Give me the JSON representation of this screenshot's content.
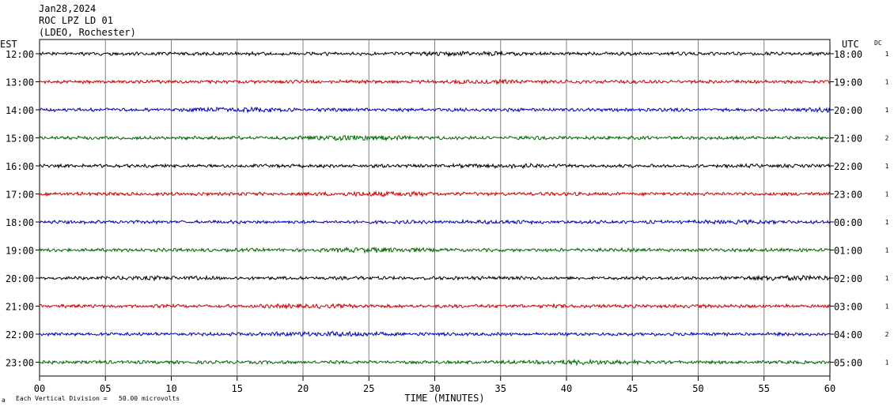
{
  "header": {
    "date": "Jan28,2024",
    "station": "ROC LPZ LD 01",
    "network": "(LDEO, Rochester)"
  },
  "left_axis_title": "EST",
  "right_axis_title": "UTC",
  "dc_title": "DC",
  "footer": {
    "scale_note": "Each Vertical Division =   50.00 microvolts",
    "corner_mark": "a"
  },
  "chart_data": {
    "type": "line",
    "title": "",
    "xlabel": "TIME (MINUTES)",
    "ylabel": "",
    "xlim": [
      0,
      60
    ],
    "x_ticks": [
      "00",
      "05",
      "10",
      "15",
      "20",
      "25",
      "30",
      "35",
      "40",
      "45",
      "50",
      "55",
      "60"
    ],
    "grid": true,
    "traces": [
      {
        "est": "12:00",
        "utc": "18:00",
        "dc": "1",
        "color": "#000000"
      },
      {
        "est": "13:00",
        "utc": "19:00",
        "dc": "1",
        "color": "#cc0000"
      },
      {
        "est": "14:00",
        "utc": "20:00",
        "dc": "1",
        "color": "#0000bb"
      },
      {
        "est": "15:00",
        "utc": "21:00",
        "dc": "2",
        "color": "#006600"
      },
      {
        "est": "16:00",
        "utc": "22:00",
        "dc": "1",
        "color": "#000000"
      },
      {
        "est": "17:00",
        "utc": "23:00",
        "dc": "1",
        "color": "#cc0000"
      },
      {
        "est": "18:00",
        "utc": "00:00",
        "dc": "1",
        "color": "#0000bb"
      },
      {
        "est": "19:00",
        "utc": "01:00",
        "dc": "1",
        "color": "#006600"
      },
      {
        "est": "20:00",
        "utc": "02:00",
        "dc": "1",
        "color": "#000000"
      },
      {
        "est": "21:00",
        "utc": "03:00",
        "dc": "1",
        "color": "#cc0000"
      },
      {
        "est": "22:00",
        "utc": "04:00",
        "dc": "2",
        "color": "#0000bb"
      },
      {
        "est": "23:00",
        "utc": "05:00",
        "dc": "1",
        "color": "#006600"
      }
    ]
  }
}
